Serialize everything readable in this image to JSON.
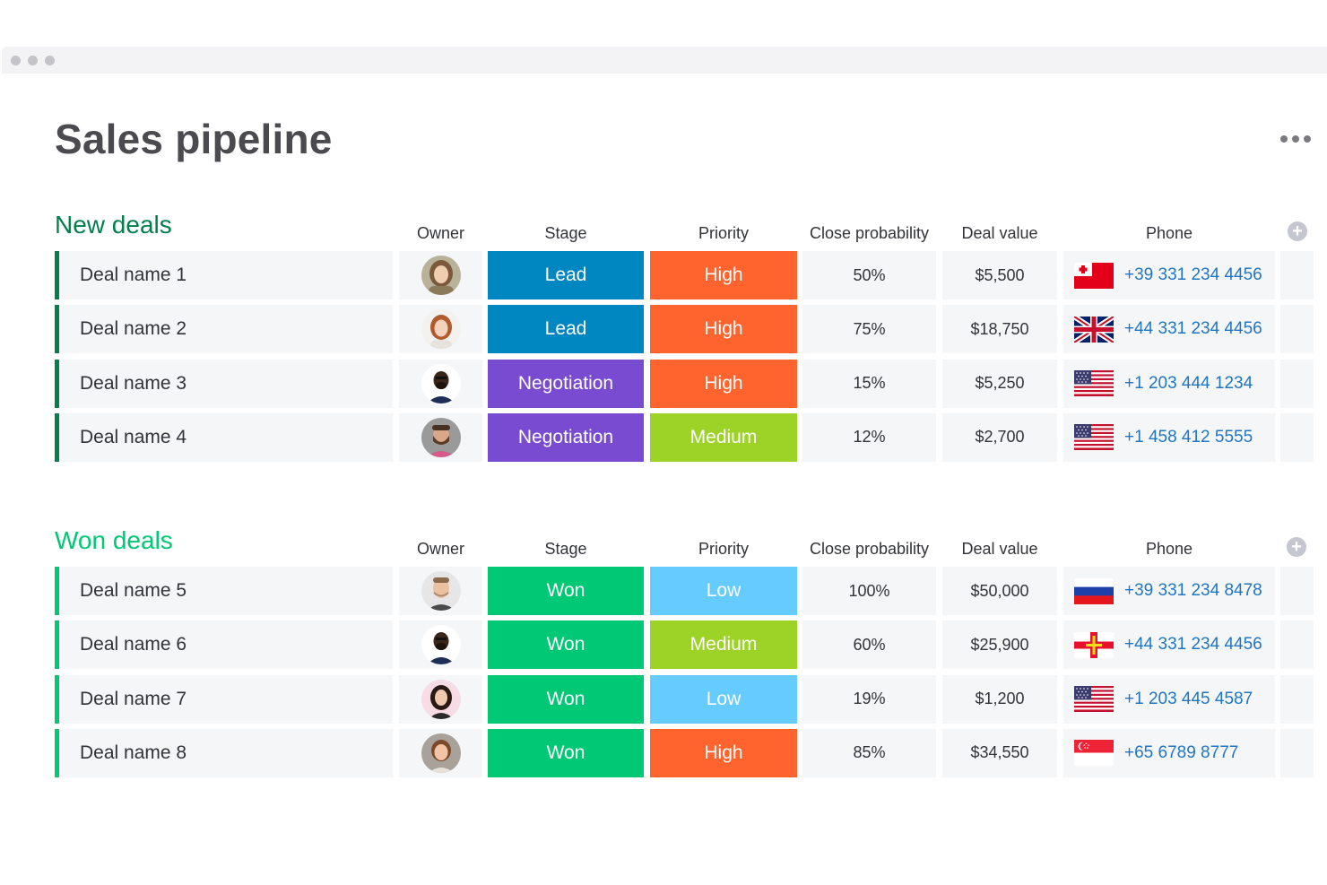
{
  "page": {
    "title": "Sales pipeline"
  },
  "columns": {
    "owner": "Owner",
    "stage": "Stage",
    "priority": "Priority",
    "close_probability": "Close probability",
    "deal_value": "Deal value",
    "phone": "Phone"
  },
  "colors": {
    "new_group": "#037f4c",
    "won_group": "#00c875",
    "lead": "#0086c0",
    "negotiation": "#784bd1",
    "won": "#00c875",
    "high": "#ff642e",
    "medium": "#9cd326",
    "low": "#66ccff",
    "phone_link": "#1f76c2"
  },
  "groups": [
    {
      "title": "New deals",
      "rows": [
        {
          "name": "Deal name 1",
          "owner_avatar": "woman-avatar-1",
          "stage": "Lead",
          "priority": "High",
          "probability": "50%",
          "value": "$5,500",
          "flag": "tonga-flag",
          "phone": "+39 331 234 4456"
        },
        {
          "name": "Deal name 2",
          "owner_avatar": "woman-avatar-2",
          "stage": "Lead",
          "priority": "High",
          "probability": "75%",
          "value": "$18,750",
          "flag": "uk-flag",
          "phone": "+44 331 234 4456"
        },
        {
          "name": "Deal name 3",
          "owner_avatar": "man-avatar-1",
          "stage": "Negotiation",
          "priority": "High",
          "probability": "15%",
          "value": "$5,250",
          "flag": "us-flag",
          "phone": "+1 203 444 1234"
        },
        {
          "name": "Deal name 4",
          "owner_avatar": "man-avatar-2",
          "stage": "Negotiation",
          "priority": "Medium",
          "probability": "12%",
          "value": "$2,700",
          "flag": "us-flag",
          "phone": "+1 458 412 5555"
        }
      ]
    },
    {
      "title": "Won deals",
      "rows": [
        {
          "name": "Deal name 5",
          "owner_avatar": "man-avatar-3",
          "stage": "Won",
          "priority": "Low",
          "probability": "100%",
          "value": "$50,000",
          "flag": "russia-flag",
          "phone": "+39 331 234 8478"
        },
        {
          "name": "Deal name 6",
          "owner_avatar": "man-avatar-1",
          "stage": "Won",
          "priority": "Medium",
          "probability": "60%",
          "value": "$25,900",
          "flag": "guernsey-flag",
          "phone": "+44 331 234 4456"
        },
        {
          "name": "Deal name 7",
          "owner_avatar": "woman-avatar-3",
          "stage": "Won",
          "priority": "Low",
          "probability": "19%",
          "value": "$1,200",
          "flag": "us-flag",
          "phone": "+1 203 445 4587"
        },
        {
          "name": "Deal name 8",
          "owner_avatar": "woman-avatar-4",
          "stage": "Won",
          "priority": "High",
          "probability": "85%",
          "value": "$34,550",
          "flag": "singapore-flag",
          "phone": "+65 6789 8777"
        }
      ]
    }
  ]
}
